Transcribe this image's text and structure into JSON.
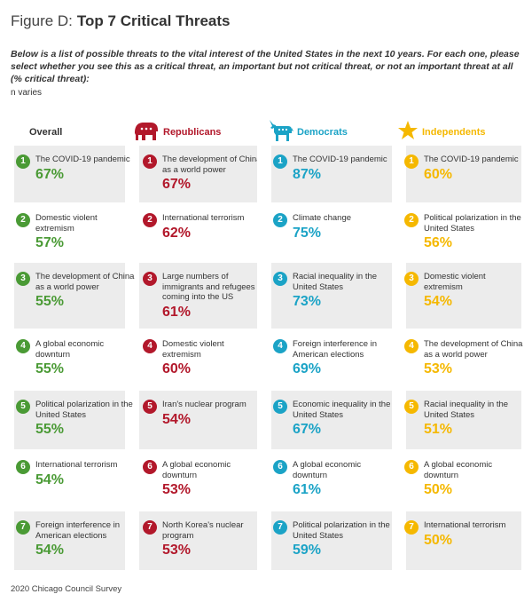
{
  "figure": {
    "label": "Figure D:",
    "title": "Top 7 Critical Threats"
  },
  "question": "Below is a list of possible threats to the vital interest of the United States in the next 10 years. For each one, please select whether you see this as a critical threat, an important but not critical threat, or not an important threat at all (% critical threat):",
  "note": "n varies",
  "source": "2020 Chicago Council Survey",
  "colors": {
    "overall": "#4a9a35",
    "republicans": "#b2182b",
    "democrats": "#1ba3c6",
    "independents": "#f5b800",
    "row_shade": "#ececec"
  },
  "columns": [
    {
      "label": "Overall",
      "icon": "none",
      "color": "#4a9a35"
    },
    {
      "label": "Republicans",
      "icon": "elephant-icon",
      "color": "#b2182b"
    },
    {
      "label": "Democrats",
      "icon": "donkey-icon",
      "color": "#1ba3c6"
    },
    {
      "label": "Independents",
      "icon": "star-icon",
      "color": "#f5b800"
    }
  ],
  "chart_data": {
    "type": "table",
    "title": "Top 7 Critical Threats",
    "unit": "% critical threat",
    "columns": [
      "Overall",
      "Republicans",
      "Democrats",
      "Independents"
    ],
    "series": [
      {
        "name": "Overall",
        "items": [
          {
            "rank": 1,
            "threat": "The COVID-19 pandemic",
            "value": 67,
            "value_label": "67%"
          },
          {
            "rank": 2,
            "threat": "Domestic violent extremism",
            "value": 57,
            "value_label": "57%"
          },
          {
            "rank": 3,
            "threat": "The development of China as a world power",
            "value": 55,
            "value_label": "55%"
          },
          {
            "rank": 4,
            "threat": "A global economic downturn",
            "value": 55,
            "value_label": "55%"
          },
          {
            "rank": 5,
            "threat": "Political polarization in the United States",
            "value": 55,
            "value_label": "55%"
          },
          {
            "rank": 6,
            "threat": "International terrorism",
            "value": 54,
            "value_label": "54%"
          },
          {
            "rank": 7,
            "threat": "Foreign interference in American elections",
            "value": 54,
            "value_label": "54%"
          }
        ]
      },
      {
        "name": "Republicans",
        "items": [
          {
            "rank": 1,
            "threat": "The development of China as a world power",
            "value": 67,
            "value_label": "67%"
          },
          {
            "rank": 2,
            "threat": "International terrorism",
            "value": 62,
            "value_label": "62%"
          },
          {
            "rank": 3,
            "threat": "Large numbers of immigrants and refugees coming into the US",
            "value": 61,
            "value_label": "61%"
          },
          {
            "rank": 4,
            "threat": "Domestic violent extremism",
            "value": 60,
            "value_label": "60%"
          },
          {
            "rank": 5,
            "threat": "Iran's nuclear program",
            "value": 54,
            "value_label": "54%"
          },
          {
            "rank": 6,
            "threat": "A global economic downturn",
            "value": 53,
            "value_label": "53%"
          },
          {
            "rank": 7,
            "threat": "North Korea's nuclear program",
            "value": 53,
            "value_label": "53%"
          }
        ]
      },
      {
        "name": "Democrats",
        "items": [
          {
            "rank": 1,
            "threat": "The COVID-19 pandemic",
            "value": 87,
            "value_label": "87%"
          },
          {
            "rank": 2,
            "threat": "Climate change",
            "value": 75,
            "value_label": "75%"
          },
          {
            "rank": 3,
            "threat": "Racial inequality in the United States",
            "value": 73,
            "value_label": "73%"
          },
          {
            "rank": 4,
            "threat": "Foreign interference in American elections",
            "value": 69,
            "value_label": "69%"
          },
          {
            "rank": 5,
            "threat": "Economic inequality in the United States",
            "value": 67,
            "value_label": "67%"
          },
          {
            "rank": 6,
            "threat": "A global economic downturn",
            "value": 61,
            "value_label": "61%"
          },
          {
            "rank": 7,
            "threat": "Political polarization in the United States",
            "value": 59,
            "value_label": "59%"
          }
        ]
      },
      {
        "name": "Independents",
        "items": [
          {
            "rank": 1,
            "threat": "The COVID-19 pandemic",
            "value": 60,
            "value_label": "60%"
          },
          {
            "rank": 2,
            "threat": "Political polarization in the United States",
            "value": 56,
            "value_label": "56%"
          },
          {
            "rank": 3,
            "threat": "Domestic violent extremism",
            "value": 54,
            "value_label": "54%"
          },
          {
            "rank": 4,
            "threat": "The development of China as a world power",
            "value": 53,
            "value_label": "53%"
          },
          {
            "rank": 5,
            "threat": "Racial inequality in the United States",
            "value": 51,
            "value_label": "51%"
          },
          {
            "rank": 6,
            "threat": "A global economic downturn",
            "value": 50,
            "value_label": "50%"
          },
          {
            "rank": 7,
            "threat": "International terrorism",
            "value": 50,
            "value_label": "50%"
          }
        ]
      }
    ]
  }
}
